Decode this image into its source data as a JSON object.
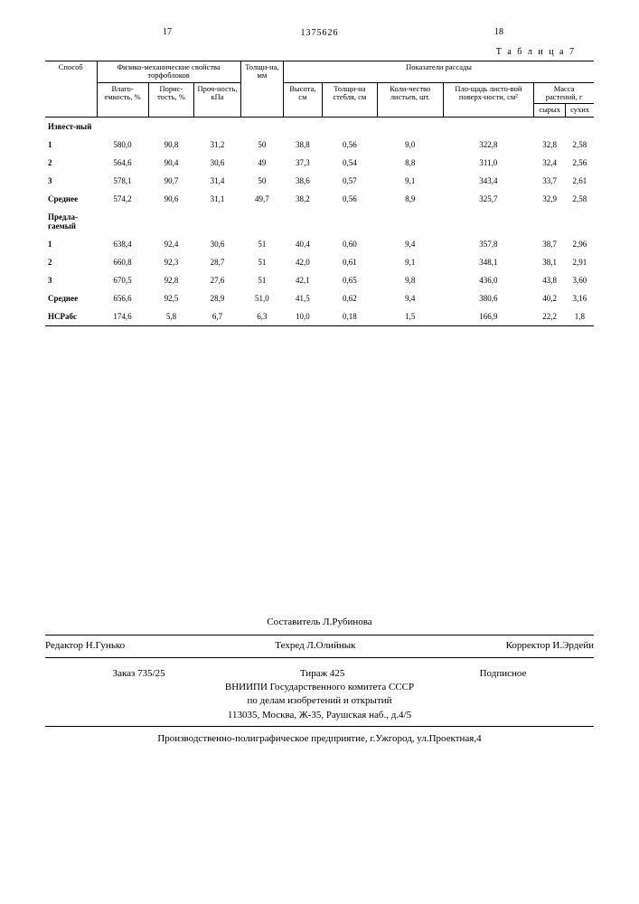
{
  "page_left": "17",
  "doc_number": "1375626",
  "page_right": "18",
  "table_label": "Т а б л и ц а 7",
  "headers": {
    "col0": "Способ",
    "group1": "Физико-механические свойства торфоблоков",
    "group2": "Показатели рассады",
    "h1": "Влаго-емкость, %",
    "h2": "Порис-тость, %",
    "h3": "Проч-ность, кПа",
    "h4": "Толщи-на, мм",
    "h5": "Высота, см",
    "h6": "Толщи-на стебля, см",
    "h7": "Коли-чество листьев, шт.",
    "h8": "Пло-щадь листо-вой поверх-ности, см²",
    "group3": "Масса растений, г",
    "h9": "сырых",
    "h10": "сухих"
  },
  "section1": "Извест-ный",
  "section2": "Предла-гаемый",
  "avg": "Среднее",
  "ncr": "НСРабс",
  "rows_known": [
    {
      "n": "1",
      "c": [
        "580,0",
        "90,8",
        "31,2",
        "50",
        "38,8",
        "0,56",
        "9,0",
        "322,8",
        "32,8",
        "2,58"
      ]
    },
    {
      "n": "2",
      "c": [
        "564,6",
        "90,4",
        "30,6",
        "49",
        "37,3",
        "0,54",
        "8,8",
        "311,0",
        "32,4",
        "2,56"
      ]
    },
    {
      "n": "3",
      "c": [
        "578,1",
        "90,7",
        "31,4",
        "50",
        "38,6",
        "0,57",
        "9,1",
        "343,4",
        "33,7",
        "2,61"
      ]
    }
  ],
  "avg_known": [
    "574,2",
    "90,6",
    "31,1",
    "49,7",
    "38,2",
    "0,56",
    "8,9",
    "325,7",
    "32,9",
    "2,58"
  ],
  "rows_prop": [
    {
      "n": "1",
      "c": [
        "638,4",
        "92,4",
        "30,6",
        "51",
        "40,4",
        "0,60",
        "9,4",
        "357,8",
        "38,7",
        "2,96"
      ]
    },
    {
      "n": "2",
      "c": [
        "660,8",
        "92,3",
        "28,7",
        "51",
        "42,0",
        "0,61",
        "9,1",
        "348,1",
        "38,1",
        "2,91"
      ]
    },
    {
      "n": "3",
      "c": [
        "670,5",
        "92,8",
        "27,6",
        "51",
        "42,1",
        "0,65",
        "9,8",
        "436,0",
        "43,8",
        "3,60"
      ]
    }
  ],
  "avg_prop": [
    "656,6",
    "92,5",
    "28,9",
    "51,0",
    "41,5",
    "0,62",
    "9,4",
    "380,6",
    "40,2",
    "3,16"
  ],
  "ncr_row": [
    "174,6",
    "5,8",
    "6,7",
    "6,3",
    "10,0",
    "0,18",
    "1,5",
    "166,9",
    "22,2",
    "1,8"
  ],
  "footer": {
    "compiler": "Составитель Л.Рубинова",
    "editor_label": "Редактор Н.Гунько",
    "techred": "Техред Л.Олийнык",
    "corrector": "Корректор И.Эрдейи",
    "order": "Заказ 735/25",
    "tirazh": "Тираж 425",
    "subscr": "Подписное",
    "org1": "ВНИИПИ Государственного комитета СССР",
    "org2": "по делам изобретений и открытий",
    "addr": "113035, Москва, Ж-35, Раушская наб., д.4/5",
    "printer": "Производственно-полиграфическое предприятие, г.Ужгород, ул.Проектная,4"
  }
}
